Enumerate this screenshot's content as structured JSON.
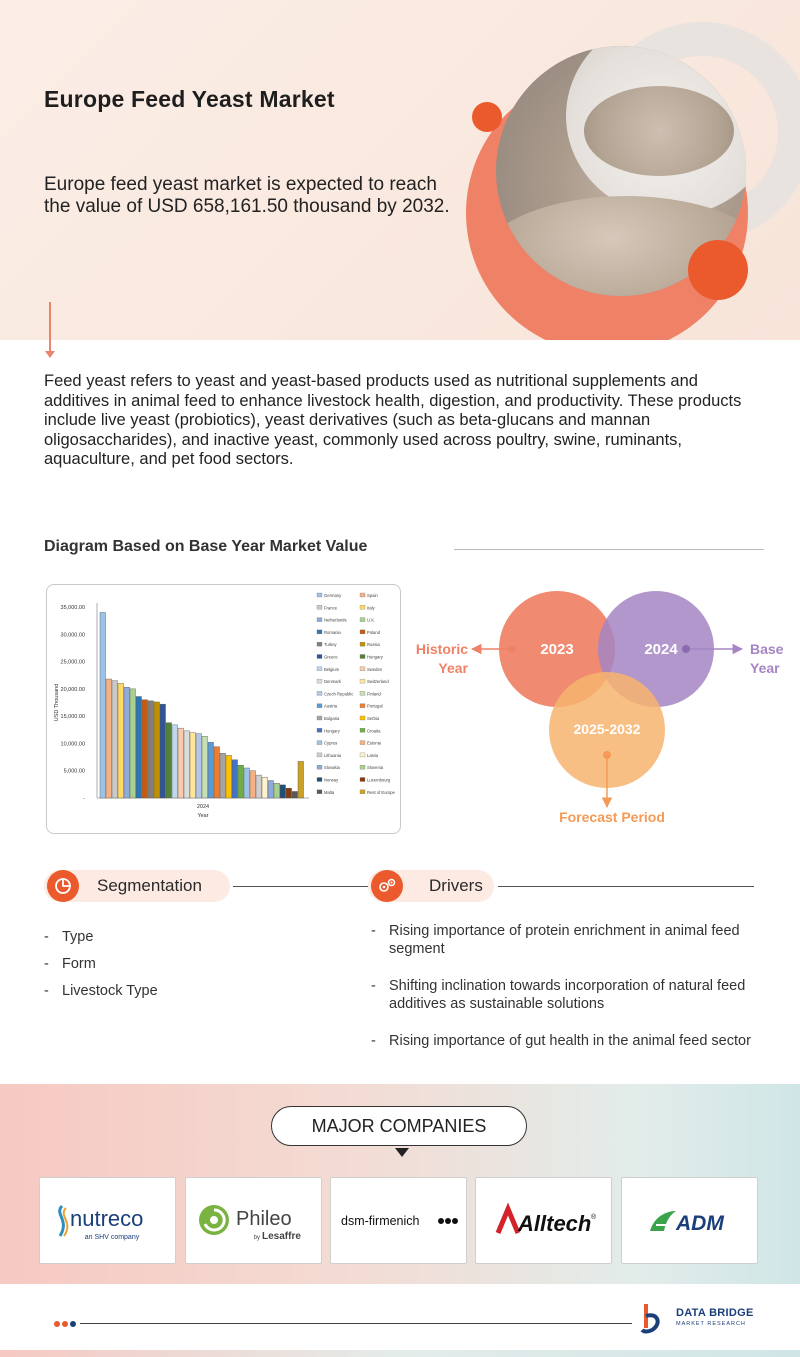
{
  "hero": {
    "title": "Europe Feed Yeast Market",
    "subtitle": "Europe feed yeast market is expected to reach the value of USD 658,161.50 thousand by 2032."
  },
  "description": "Feed yeast refers to yeast and yeast-based products used as nutritional supplements and additives in animal feed to enhance livestock health, digestion, and productivity. These products include live yeast (probiotics), yeast derivatives (such as beta-glucans and mannan oligosaccharides), and inactive yeast, commonly used across poultry, swine, ruminants, aquaculture, and pet food sectors.",
  "diagram_section": {
    "title": "Diagram Based on Base Year Market Value"
  },
  "chart_data": {
    "type": "bar",
    "categories": [
      "2024"
    ],
    "xlabel": "Year",
    "ylabel": "USD Thousand",
    "ylim": [
      0,
      35000
    ],
    "yticks": [
      "-",
      "5,000.00",
      "10,000.00",
      "15,000.00",
      "20,000.00",
      "25,000.00",
      "30,000.00",
      "35,000.00"
    ],
    "grid": false,
    "legend_position": "right",
    "series": [
      {
        "name": "Germany",
        "value": 34000,
        "color": "#9cc3e6"
      },
      {
        "name": "Spain",
        "value": 21800,
        "color": "#f4b183"
      },
      {
        "name": "France",
        "value": 21500,
        "color": "#c9c9c9"
      },
      {
        "name": "Italy",
        "value": 21000,
        "color": "#ffd966"
      },
      {
        "name": "Netherlands",
        "value": 20300,
        "color": "#8faadc"
      },
      {
        "name": "U.K.",
        "value": 20000,
        "color": "#a9d18e"
      },
      {
        "name": "Romania",
        "value": 18600,
        "color": "#2e75b6"
      },
      {
        "name": "Poland",
        "value": 18000,
        "color": "#c55a11"
      },
      {
        "name": "Turkey",
        "value": 17800,
        "color": "#7f7f7f"
      },
      {
        "name": "Russia",
        "value": 17600,
        "color": "#bf9000"
      },
      {
        "name": "Greece",
        "value": 17200,
        "color": "#2f5597"
      },
      {
        "name": "Hungary",
        "value": 13800,
        "color": "#548235"
      },
      {
        "name": "Belgium",
        "value": 13400,
        "color": "#bdd7ee"
      },
      {
        "name": "Sweden",
        "value": 12800,
        "color": "#f8cbad"
      },
      {
        "name": "Denmark",
        "value": 12300,
        "color": "#dbdbdb"
      },
      {
        "name": "Switzerland",
        "value": 12000,
        "color": "#ffe699"
      },
      {
        "name": "Czech Republic",
        "value": 11800,
        "color": "#b4c7e7"
      },
      {
        "name": "Finland",
        "value": 11300,
        "color": "#c5e0b4"
      },
      {
        "name": "Austria",
        "value": 10200,
        "color": "#5b9bd5"
      },
      {
        "name": "Portugal",
        "value": 9400,
        "color": "#ed7d31"
      },
      {
        "name": "Bulgaria",
        "value": 8200,
        "color": "#a5a5a5"
      },
      {
        "name": "Serbia",
        "value": 7800,
        "color": "#ffc000"
      },
      {
        "name": "Hungary",
        "value": 7000,
        "color": "#4472c4"
      },
      {
        "name": "Croatia",
        "value": 6000,
        "color": "#70ad47"
      },
      {
        "name": "Cyprus",
        "value": 5500,
        "color": "#9dc3e6"
      },
      {
        "name": "Estonia",
        "value": 5000,
        "color": "#f4b183"
      },
      {
        "name": "Lithuania",
        "value": 4200,
        "color": "#d0cece"
      },
      {
        "name": "Latvia",
        "value": 3800,
        "color": "#fff2cc"
      },
      {
        "name": "Slovakia",
        "value": 3200,
        "color": "#8ea9db"
      },
      {
        "name": "Slovenia",
        "value": 2700,
        "color": "#a9d18e"
      },
      {
        "name": "Norway",
        "value": 2400,
        "color": "#1f4e79"
      },
      {
        "name": "Luxembourg",
        "value": 1800,
        "color": "#843c0c"
      },
      {
        "name": "Malta",
        "value": 1200,
        "color": "#595959"
      },
      {
        "name": "Rest of Europe",
        "value": 6700,
        "color": "#c9a227"
      }
    ]
  },
  "venn": {
    "historic_label_1": "Historic",
    "historic_label_2": "Year",
    "circle_historic": "2023",
    "circle_base": "2024",
    "base_label_1": "Base",
    "base_label_2": "Year",
    "circle_forecast": "2025-2032",
    "forecast_label": "Forecast Period",
    "colors": {
      "historic": "#ef8166",
      "base": "#a585c3",
      "forecast": "#f7b46e"
    }
  },
  "segmentation": {
    "title": "Segmentation",
    "icon": "pie-chart-icon",
    "items": [
      "Type",
      "Form",
      "Livestock Type"
    ]
  },
  "drivers": {
    "title": "Drivers",
    "icon": "gears-icon",
    "items": [
      "Rising importance of protein enrichment in animal feed segment",
      "Shifting inclination towards incorporation of natural feed additives as sustainable solutions",
      "Rising importance of gut health in the animal feed sector"
    ]
  },
  "companies": {
    "title": "MAJOR COMPANIES",
    "logos": [
      {
        "name": "nutreco",
        "tag": "an SHV company"
      },
      {
        "name": "Phileo",
        "tag_by": "by",
        "tag": "Lesaffre"
      },
      {
        "name": "dsm-firmenich"
      },
      {
        "name": "Alltech",
        "display": "Alltech",
        "mark": "®"
      },
      {
        "name": "ADM"
      }
    ]
  },
  "footer": {
    "brand_line1": "DATA BRIDGE",
    "brand_line2": "MARKET RESEARCH",
    "accent": "#ea5a2c"
  }
}
